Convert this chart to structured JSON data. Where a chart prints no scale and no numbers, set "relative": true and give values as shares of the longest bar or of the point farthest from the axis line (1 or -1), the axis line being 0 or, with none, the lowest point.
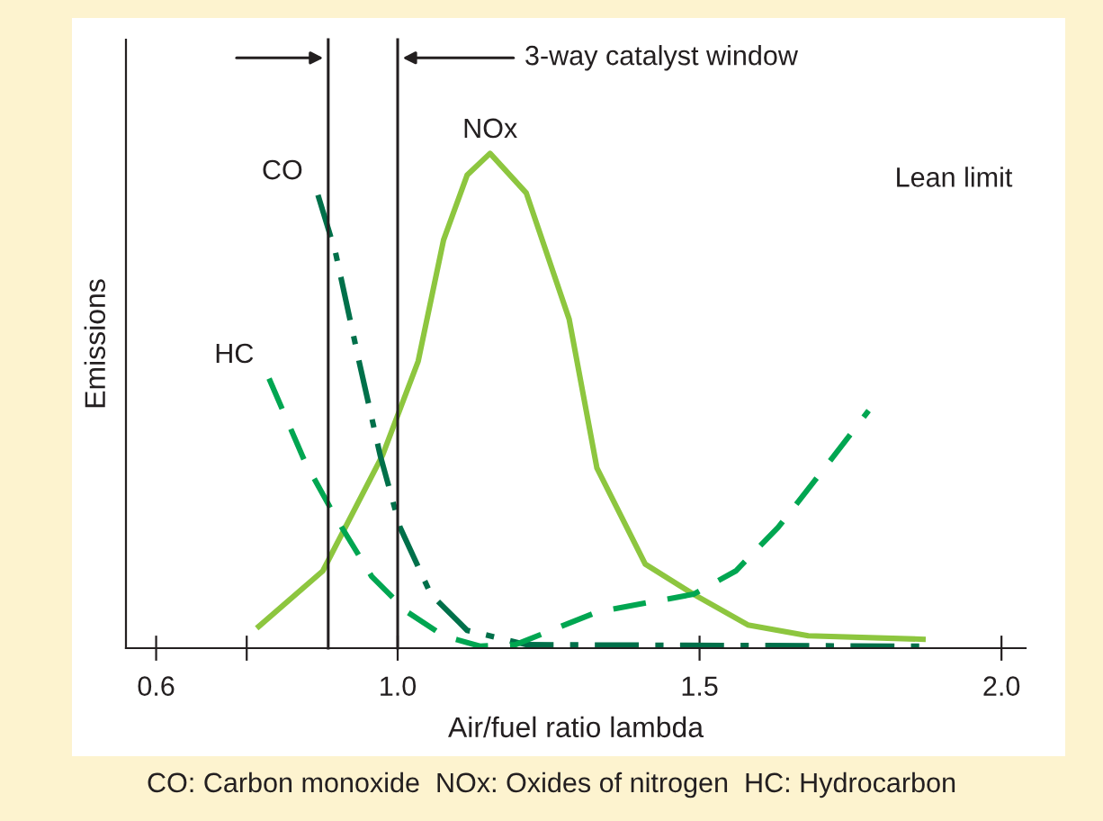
{
  "chart_data": {
    "type": "line",
    "relative": true,
    "xlabel": "Air/fuel ratio lambda",
    "ylabel": "Emissions",
    "xlim": [
      0.55,
      2.04
    ],
    "xticks": [
      0.6,
      {
        "value": 0.75,
        "label": null
      },
      {
        "value": 1.0,
        "label": "1.0"
      },
      1.5,
      {
        "value": 2.0,
        "label": "2.0"
      }
    ],
    "marker": "none",
    "grid": false,
    "series": [
      {
        "name": "NOx",
        "color": "#8dc63f",
        "line_style": "solid",
        "x": [
          0.77,
          0.876,
          0.975,
          1.034,
          1.076,
          1.115,
          1.153,
          1.213,
          1.284,
          1.33,
          1.41,
          1.49,
          1.58,
          1.68,
          1.87
        ],
        "values": [
          0.044,
          0.156,
          0.39,
          0.58,
          0.825,
          0.956,
          1.0,
          0.92,
          0.665,
          0.364,
          0.17,
          0.109,
          0.047,
          0.025,
          0.018
        ]
      },
      {
        "name": "CO",
        "color": "#00704a",
        "line_style": "dashdot",
        "x": [
          0.868,
          0.897,
          0.936,
          0.971,
          1.004,
          1.055,
          1.115,
          1.213,
          1.87
        ],
        "values": [
          0.916,
          0.8,
          0.58,
          0.39,
          0.244,
          0.109,
          0.036,
          0.007,
          0.004
        ]
      },
      {
        "name": "HC",
        "color": "#00a651",
        "line_style": "dashed",
        "x": [
          0.787,
          0.847,
          0.897,
          0.957,
          1.016,
          1.076,
          1.136,
          1.195,
          1.33,
          1.49,
          1.56,
          1.63,
          1.7,
          1.78
        ],
        "values": [
          0.545,
          0.375,
          0.265,
          0.145,
          0.073,
          0.025,
          0.004,
          0.007,
          0.073,
          0.109,
          0.156,
          0.244,
          0.353,
          0.48
        ]
      }
    ],
    "ref_lines": [
      {
        "axis": "x",
        "value": 0.885,
        "label": null,
        "color": "#231f20"
      },
      {
        "axis": "x",
        "value": 1.0,
        "label": "3-way catalyst window",
        "color": "#231f20"
      }
    ],
    "annotations": [
      "Lean limit",
      "CO: Carbon monoxide  NOx: Oxides of nitrogen  HC: Hydrocarbon"
    ]
  }
}
